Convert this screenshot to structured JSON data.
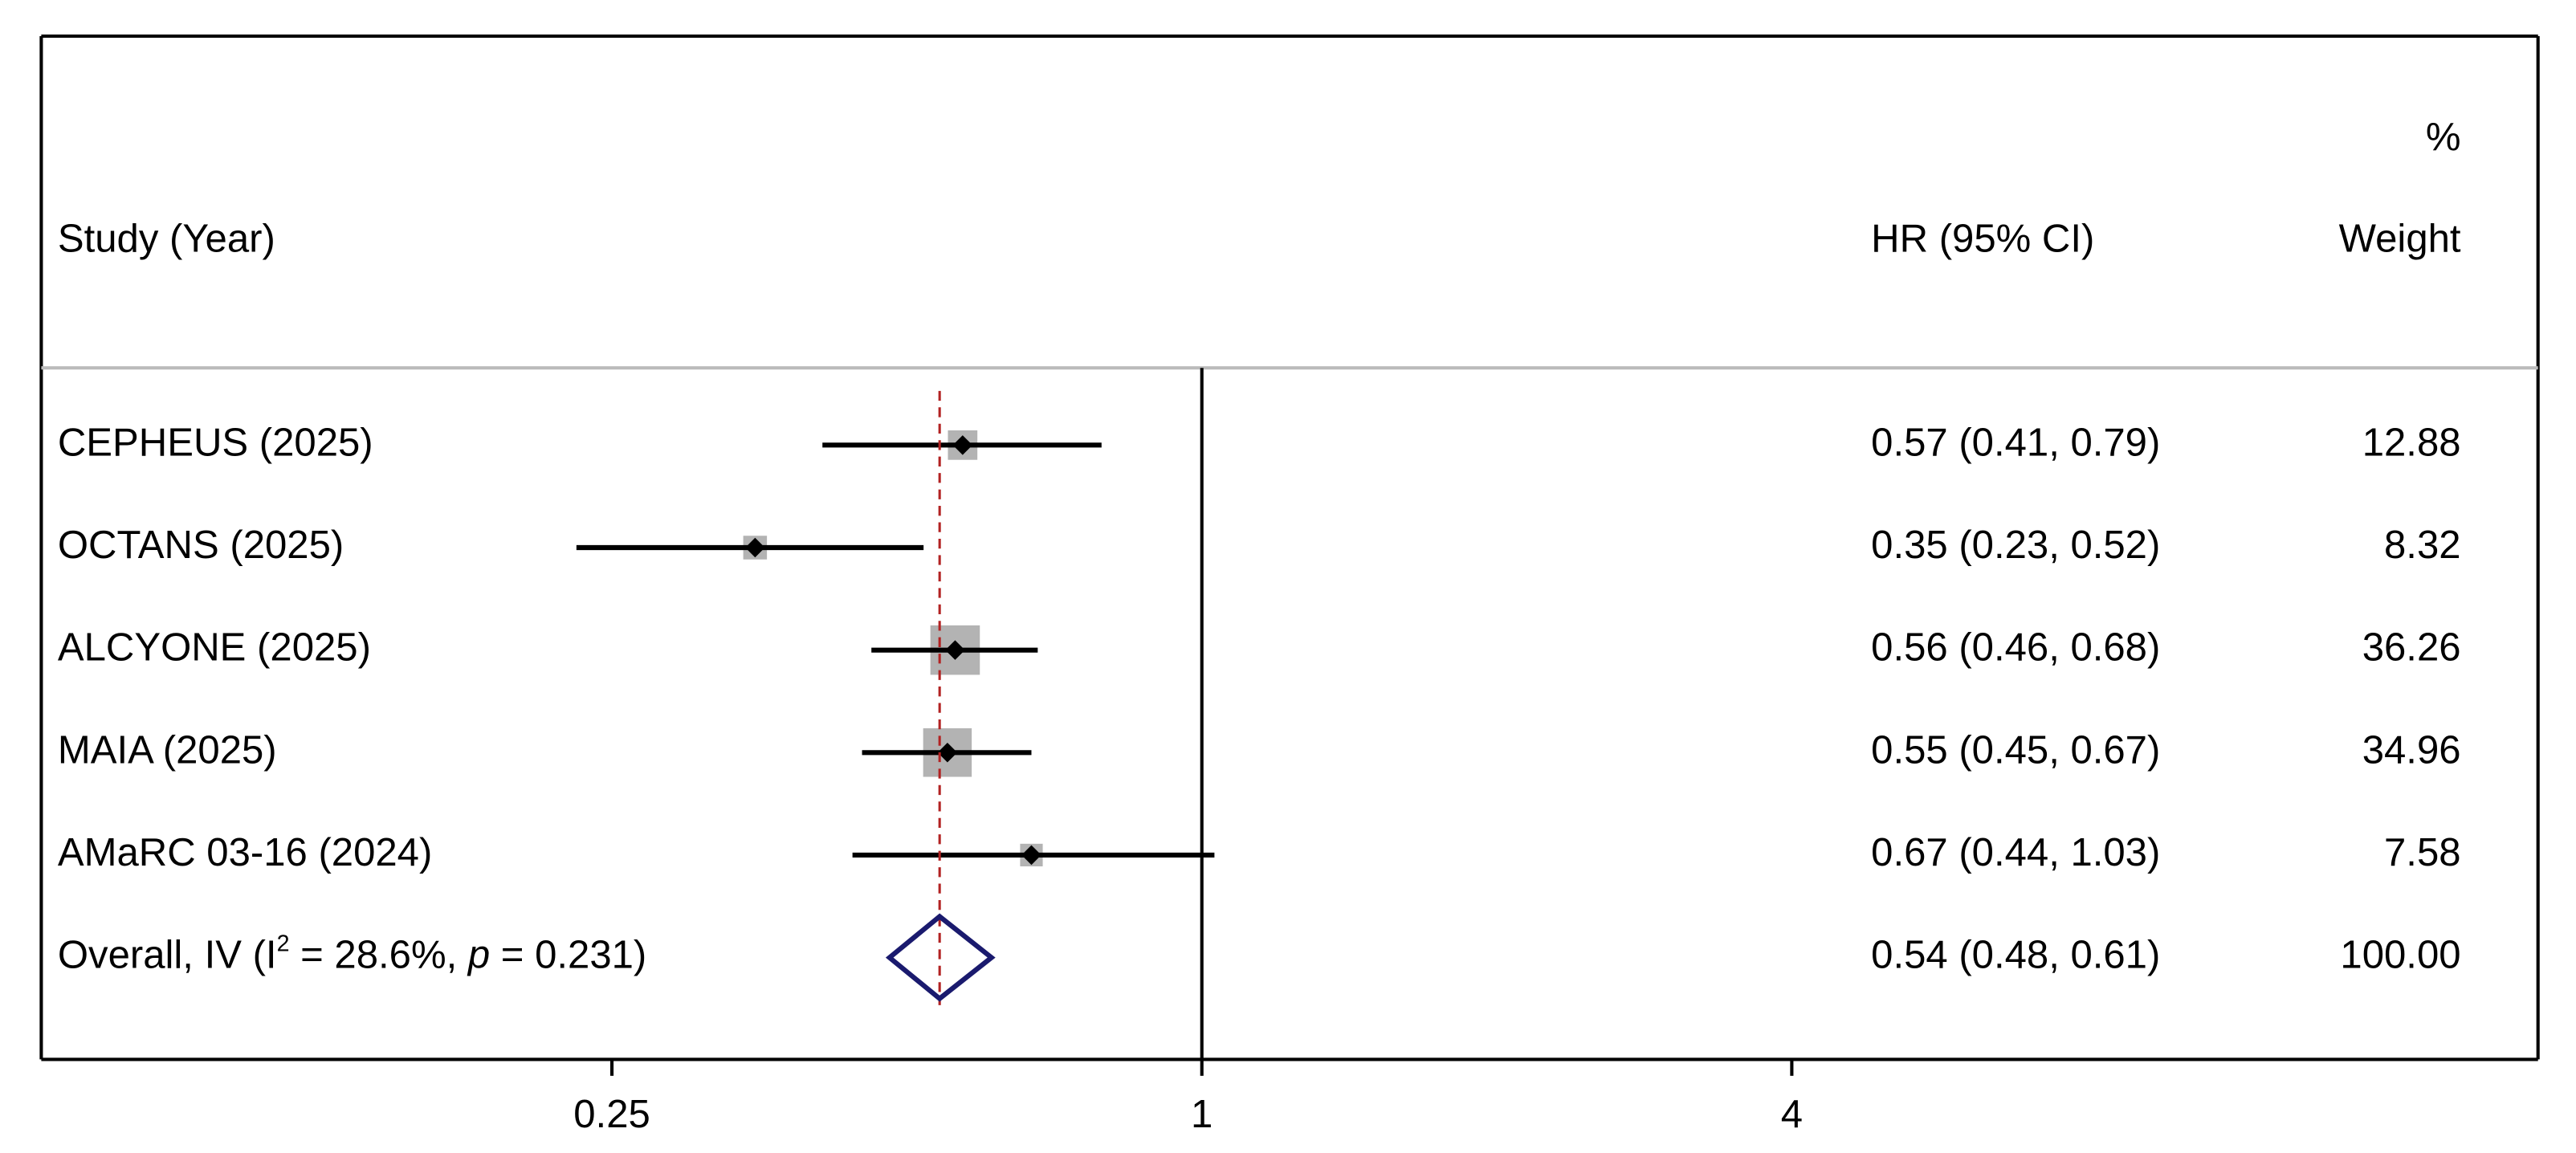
{
  "chart_data": {
    "type": "forest",
    "headers": {
      "study": "Study (Year)",
      "estimate": "HR (95% CI)",
      "weight_top": "%",
      "weight": "Weight"
    },
    "studies": [
      "CEPHEUS (2025)",
      "OCTANS (2025)",
      "ALCYONE (2025)",
      "MAIA (2025)",
      "AMaRC 03-16 (2024)"
    ],
    "values": [
      0.57,
      0.35,
      0.56,
      0.55,
      0.67
    ],
    "ci_low": [
      0.41,
      0.23,
      0.46,
      0.45,
      0.44
    ],
    "ci_high": [
      0.79,
      0.52,
      0.68,
      0.67,
      1.03
    ],
    "value_labels": [
      "0.57 (0.41, 0.79)",
      "0.35 (0.23, 0.52)",
      "0.56 (0.46, 0.68)",
      "0.55 (0.45, 0.67)",
      "0.67 (0.44, 1.03)"
    ],
    "weights": [
      12.88,
      8.32,
      36.26,
      34.96,
      7.58
    ],
    "overall": {
      "label_parts": [
        "Overall, IV (I",
        "2",
        " = 28.6%, ",
        "p",
        " = 0.231)"
      ],
      "value": 0.54,
      "ci_low": 0.48,
      "ci_high": 0.61,
      "value_label": "0.54 (0.48, 0.61)",
      "weight_label": "100.00"
    },
    "log_scale": true,
    "xlim": [
      0.0654,
      23.1
    ],
    "xticks": [
      0.25,
      1,
      4
    ],
    "reference_line": 1,
    "colors": {
      "square": "#b3b3b3",
      "ci": "#000000",
      "diamond": "#1a1a6e",
      "overall_line": "#b22222"
    }
  }
}
